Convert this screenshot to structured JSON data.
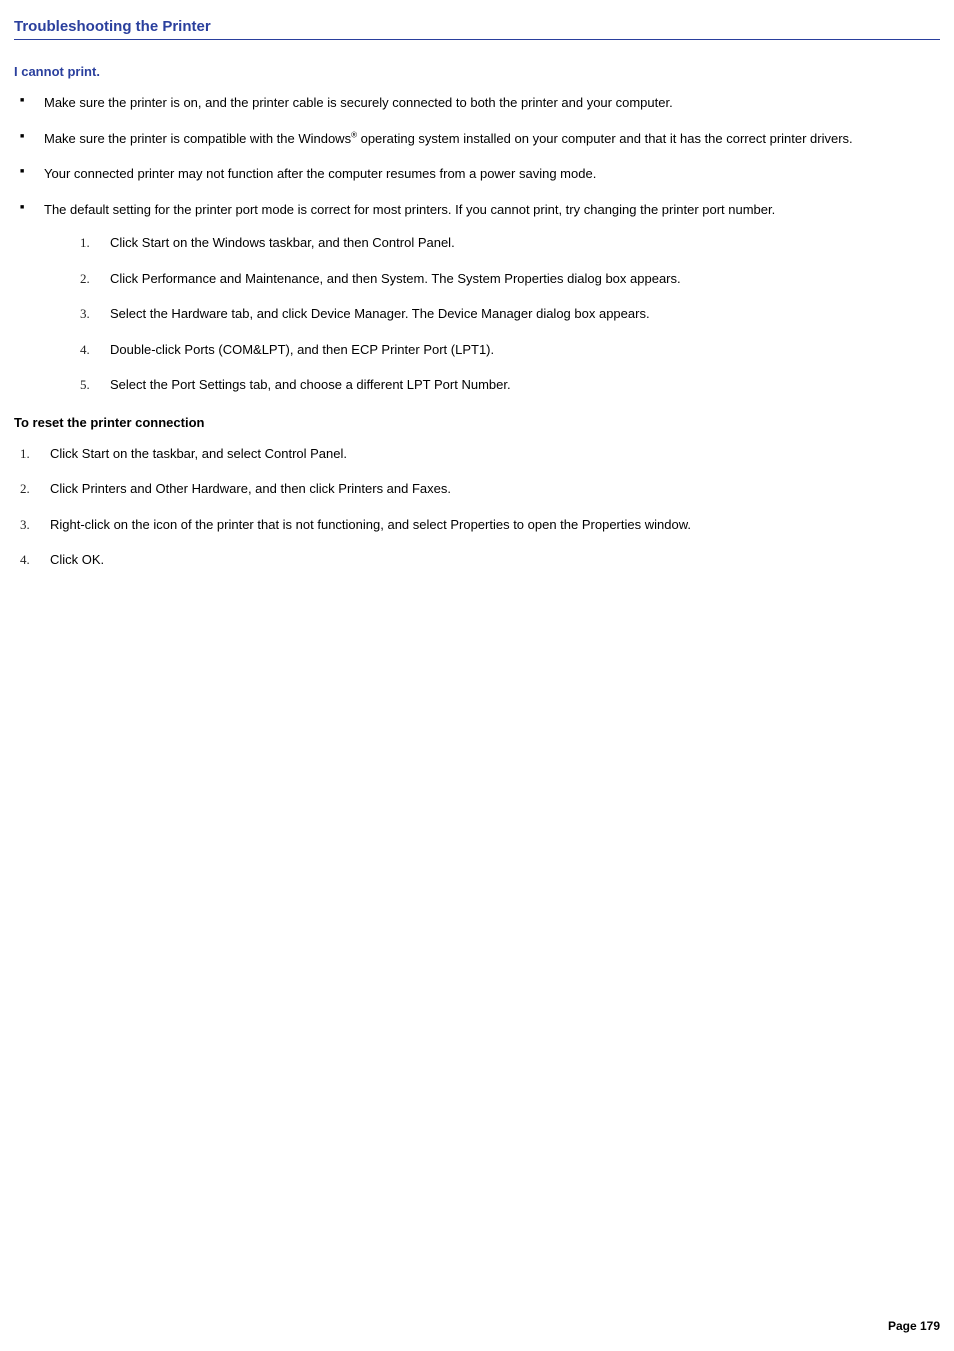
{
  "colors": {
    "heading": "#2a3f9d",
    "body_text": "#000000",
    "background": "#ffffff",
    "border": "#2a3f9d"
  },
  "fonts": {
    "body_family": "Verdana",
    "list_number_family": "Times New Roman",
    "body_size_pt": 10,
    "heading_size_pt": 11
  },
  "title": "Troubleshooting the Printer",
  "subheading": "I cannot print.",
  "bullets": [
    "Make sure the printer is on, and the printer cable is securely connected to both the printer and your computer.",
    "Make sure the printer is compatible with the Windows® operating system installed on your computer and that it has the correct printer drivers.",
    "Your connected printer may not function after the computer resumes from a power saving mode.",
    "The default setting for the printer port mode is correct for most printers. If you cannot print, try changing the printer port number."
  ],
  "nested_steps": [
    "Click Start on the Windows taskbar, and then Control Panel.",
    "Click Performance and Maintenance, and then System. The System Properties dialog box appears.",
    "Select the Hardware tab, and click Device Manager. The Device Manager dialog box appears.",
    "Double-click Ports (COM&LPT), and then ECP Printer Port (LPT1).",
    "Select the Port Settings tab, and choose a different LPT Port Number."
  ],
  "reset_heading": "To reset the printer connection",
  "reset_steps": [
    "Click Start on the taskbar, and select Control Panel.",
    "Click Printers and Other Hardware, and then click Printers and Faxes.",
    "Right-click on the icon of the printer that is not functioning, and select Properties to open the Properties window.",
    "Click OK."
  ],
  "footer": "Page 179"
}
